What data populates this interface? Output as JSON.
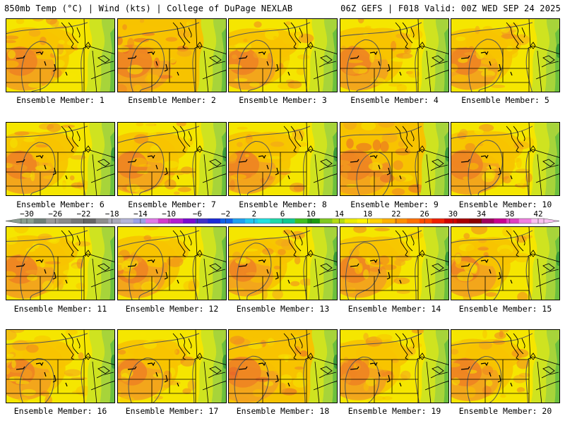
{
  "header": {
    "left": "850mb Temp (°C) | Wind (kts) | College of DuPage NEXLAB",
    "right": "06Z GEFS | F018 Valid: 00Z WED SEP 24 2025"
  },
  "panels": [
    {
      "label": "Ensemble Member: 1",
      "member": 1,
      "warmth": 0.55
    },
    {
      "label": "Ensemble Member: 2",
      "member": 2,
      "warmth": 0.8
    },
    {
      "label": "Ensemble Member: 3",
      "member": 3,
      "warmth": 0.45
    },
    {
      "label": "Ensemble Member: 4",
      "member": 4,
      "warmth": 0.55
    },
    {
      "label": "Ensemble Member: 5",
      "member": 5,
      "warmth": 0.45
    },
    {
      "label": "Ensemble Member: 6",
      "member": 6,
      "warmth": 0.5
    },
    {
      "label": "Ensemble Member: 7",
      "member": 7,
      "warmth": 0.45
    },
    {
      "label": "Ensemble Member: 8",
      "member": 8,
      "warmth": 0.5
    },
    {
      "label": "Ensemble Member: 9",
      "member": 9,
      "warmth": 0.65
    },
    {
      "label": "Ensemble Member: 10",
      "member": 10,
      "warmth": 0.6
    },
    {
      "label": "Ensemble Member: 11",
      "member": 11,
      "warmth": 0.55
    },
    {
      "label": "Ensemble Member: 12",
      "member": 12,
      "warmth": 0.5
    },
    {
      "label": "Ensemble Member: 13",
      "member": 13,
      "warmth": 0.3
    },
    {
      "label": "Ensemble Member: 14",
      "member": 14,
      "warmth": 0.45
    },
    {
      "label": "Ensemble Member: 15",
      "member": 15,
      "warmth": 0.35
    },
    {
      "label": "Ensemble Member: 16",
      "member": 16,
      "warmth": 0.35
    },
    {
      "label": "Ensemble Member: 17",
      "member": 17,
      "warmth": 0.4
    },
    {
      "label": "Ensemble Member: 18",
      "member": 18,
      "warmth": 0.65
    },
    {
      "label": "Ensemble Member: 19",
      "member": 19,
      "warmth": 0.4
    },
    {
      "label": "Ensemble Member: 20",
      "member": 20,
      "warmth": 0.5
    }
  ],
  "colorbar": {
    "ticks": [
      "−30",
      "−26",
      "−22",
      "−18",
      "−14",
      "−10",
      "−6",
      "−2",
      "2",
      "6",
      "10",
      "14",
      "18",
      "22",
      "26",
      "30",
      "34",
      "38",
      "42"
    ],
    "colors": [
      "#8a9e90",
      "#6f7f78",
      "#999999",
      "#8a8a8a",
      "#777777",
      "#666666",
      "#8d8d8d",
      "#a8a8b8",
      "#b4b4d8",
      "#9aa0e6",
      "#e07ae8",
      "#d23ccc",
      "#b21ed0",
      "#7a0ad0",
      "#4030c8",
      "#1a2ad8",
      "#1060e8",
      "#1ea0f0",
      "#20c8f0",
      "#22e0e0",
      "#1ed8a8",
      "#10c890",
      "#40c020",
      "#1a9a10",
      "#80c820",
      "#b4dc10",
      "#ecec00",
      "#fff200",
      "#ffd000",
      "#ffb000",
      "#ff9000",
      "#ff7000",
      "#ff4c00",
      "#f02000",
      "#d00000",
      "#a80000",
      "#8c0000",
      "#a00060",
      "#c80090",
      "#e040c0",
      "#f080e0",
      "#f8c0f0"
    ],
    "colors_note": "left arrow #8a9e90, right arrow #f8c0f0"
  },
  "palette": {
    "yellow": "#f5e600",
    "light_orange": "#f7c300",
    "orange": "#f2a21e",
    "dark_orange": "#ee8422",
    "red_orange": "#e8652a",
    "lime": "#cfe320",
    "light_green": "#a7d43a",
    "green": "#6bbf3e",
    "dark_green": "#3a9a3a"
  }
}
